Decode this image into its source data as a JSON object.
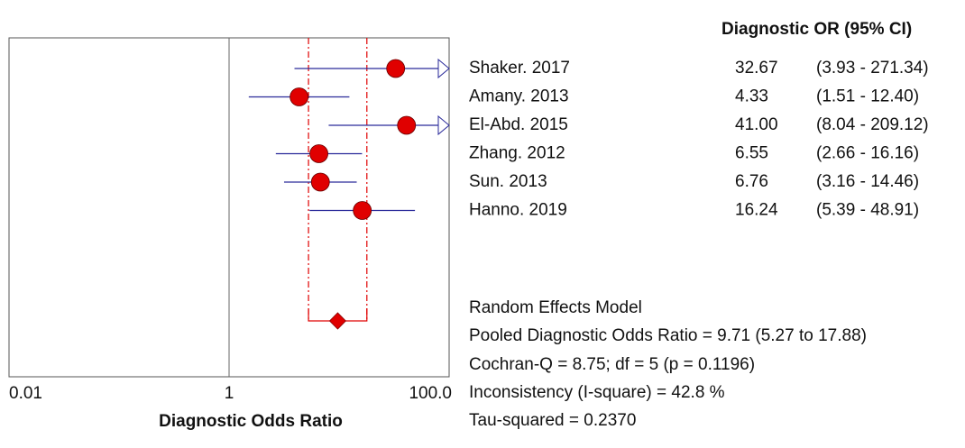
{
  "chart_data": {
    "type": "forest",
    "xlabel": "Diagnostic Odds Ratio",
    "log_x": true,
    "xlim": [
      0.01,
      100
    ],
    "xticks": [
      0.01,
      1,
      {
        "value": 100,
        "label": "100.0"
      }
    ],
    "column_header": "Diagnostic OR (95% CI)",
    "categories": [
      "Shaker. 2017",
      "Amany. 2013",
      "El-Abd. 2015",
      "Zhang. 2012",
      "Sun. 2013",
      "Hanno. 2019"
    ],
    "values": [
      32.67,
      4.33,
      41.0,
      6.55,
      6.76,
      16.24
    ],
    "value_labels": [
      "32.67",
      "4.33",
      "41.00",
      "6.55",
      "6.76",
      "16.24"
    ],
    "lower": [
      3.93,
      1.51,
      8.04,
      2.66,
      3.16,
      5.39
    ],
    "upper": [
      271.34,
      12.4,
      209.12,
      16.16,
      14.46,
      48.91
    ],
    "ci_labels": [
      "(3.93 - 271.34)",
      "(1.51 - 12.40)",
      "(8.04 - 209.12)",
      "(2.66 - 16.16)",
      "(3.16 - 14.46)",
      "(5.39 - 48.91)"
    ],
    "point_color": "#e00000",
    "ci_color": "#2a2a9a",
    "pooled": {
      "model": "Random Effects Model",
      "label": "Pooled Diagnostic Odds Ratio = 9.71 (5.27 to 17.88)",
      "value": 9.71,
      "lower": 5.27,
      "upper": 17.88,
      "color": "#e00000"
    },
    "stats": [
      "Cochran-Q = 8.75; df =  5 (p = 0.1196)",
      "Inconsistency (I-square) = 42.8 %",
      "Tau-squared = 0.2370"
    ]
  }
}
